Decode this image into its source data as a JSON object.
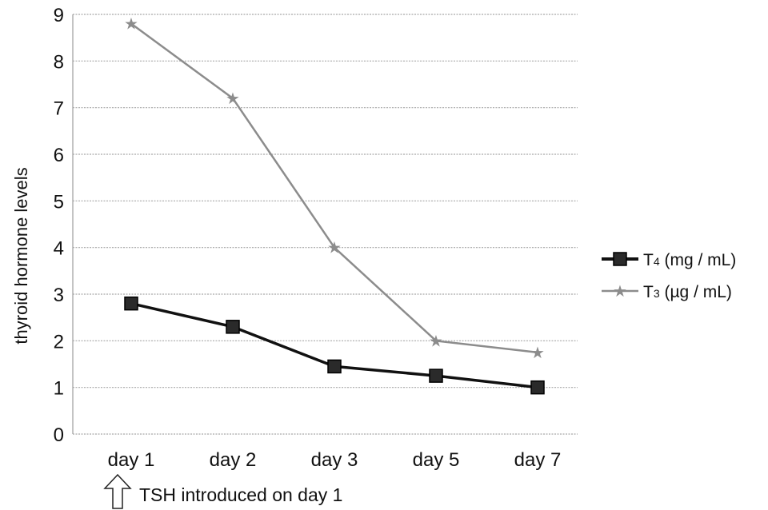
{
  "chart_data": {
    "type": "line",
    "categories": [
      "day 1",
      "day 2",
      "day 3",
      "day 5",
      "day 7"
    ],
    "ylabel": "thyroid hormone levels",
    "xlabel": "",
    "ylim": [
      0,
      9
    ],
    "yticks": [
      "0",
      "1",
      "2",
      "3",
      "4",
      "5",
      "6",
      "7",
      "8",
      "9"
    ],
    "grid": true,
    "legend_position": "right",
    "series": [
      {
        "name_main": "T",
        "name_sub": "4",
        "name_rest": " (mg / mL)",
        "values": [
          2.8,
          2.3,
          1.45,
          1.25,
          1.0
        ],
        "color": "#111111",
        "marker": "square"
      },
      {
        "name_main": "T",
        "name_sub": "3",
        "name_rest": " (µg / mL)",
        "values": [
          8.8,
          7.2,
          4.0,
          2.0,
          1.75
        ],
        "color": "#8c8c8c",
        "marker": "star"
      }
    ],
    "annotation": {
      "text": "TSH introduced on day 1",
      "icon": "up-arrow-icon",
      "category": "day 1"
    }
  }
}
